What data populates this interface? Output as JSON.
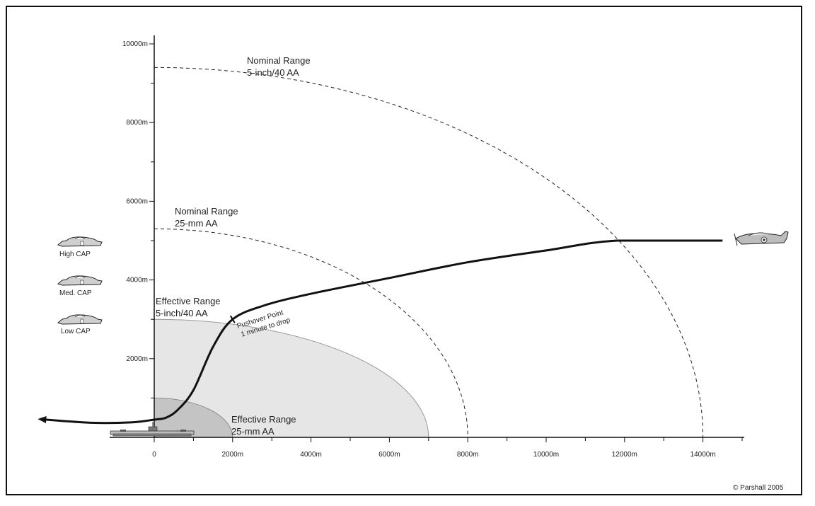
{
  "x_ticks": [
    {
      "value": 0,
      "label": "0"
    },
    {
      "value": 2000,
      "label": "2000m"
    },
    {
      "value": 4000,
      "label": "4000m"
    },
    {
      "value": 6000,
      "label": "6000m"
    },
    {
      "value": 8000,
      "label": "8000m"
    },
    {
      "value": 10000,
      "label": "10000m"
    },
    {
      "value": 12000,
      "label": "12000m"
    },
    {
      "value": 14000,
      "label": "14000m"
    }
  ],
  "y_ticks": [
    {
      "value": 2000,
      "label": "2000m"
    },
    {
      "value": 4000,
      "label": "4000m"
    },
    {
      "value": 6000,
      "label": "6000m"
    },
    {
      "value": 8000,
      "label": "8000m"
    },
    {
      "value": 10000,
      "label": "10000m"
    }
  ],
  "zones": {
    "nominal_5inch": {
      "line1": "Nominal Range",
      "line2": "5-inch/40 AA",
      "radius_x": 14000,
      "radius_y": 9400
    },
    "nominal_25mm": {
      "line1": "Nominal Range",
      "line2": "25-mm AA",
      "radius_x": 8000,
      "radius_y": 5300
    },
    "effective_5inch": {
      "line1": "Effective Range",
      "line2": "5-inch/40 AA",
      "radius_x": 7000,
      "radius_y": 3000,
      "fill": "#e6e6e6"
    },
    "effective_25mm": {
      "line1": "Effective Range",
      "line2": "25-mm AA",
      "radius_x": 2000,
      "radius_y": 1000,
      "fill": "#c4c4c4"
    }
  },
  "pushover": {
    "line1": "Pushover Point",
    "line2": "1 minute to drop",
    "x": 2000,
    "y": 3000
  },
  "attack_path": [
    [
      14500,
      5000
    ],
    [
      11800,
      5000
    ],
    [
      10000,
      4750
    ],
    [
      8000,
      4450
    ],
    [
      6000,
      4050
    ],
    [
      4000,
      3650
    ],
    [
      2800,
      3350
    ],
    [
      2000,
      3000
    ],
    [
      1500,
      2300
    ],
    [
      1000,
      1200
    ],
    [
      600,
      700
    ],
    [
      300,
      500
    ],
    [
      0,
      450
    ],
    [
      -600,
      380
    ],
    [
      -1600,
      370
    ],
    [
      -2900,
      460
    ]
  ],
  "cap": [
    {
      "label": "High CAP"
    },
    {
      "label": "Med. CAP"
    },
    {
      "label": "Low CAP"
    }
  ],
  "credit": "© Parshall 2005",
  "colors": {
    "ink": "#111111",
    "effective_5inch": "#e6e6e6",
    "effective_25mm": "#c4c4c4",
    "zone_border": "#9a9a9a"
  }
}
